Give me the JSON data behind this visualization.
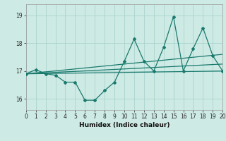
{
  "xlabel": "Humidex (Indice chaleur)",
  "xlim": [
    0,
    20
  ],
  "ylim": [
    15.6,
    19.4
  ],
  "yticks": [
    16,
    17,
    18,
    19
  ],
  "xticks": [
    0,
    1,
    2,
    3,
    4,
    5,
    6,
    7,
    8,
    9,
    10,
    11,
    12,
    13,
    14,
    15,
    16,
    17,
    18,
    19,
    20
  ],
  "bg_color": "#ceeae4",
  "grid_color": "#aad4ce",
  "line_color": "#1a7a6e",
  "series": {
    "main": {
      "x": [
        0,
        1,
        2,
        3,
        4,
        5,
        6,
        7,
        8,
        9,
        10,
        11,
        12,
        13,
        14,
        15,
        16,
        17,
        18,
        19,
        20
      ],
      "y": [
        16.9,
        17.05,
        16.9,
        16.85,
        16.6,
        16.6,
        15.95,
        15.95,
        16.3,
        16.6,
        17.35,
        18.15,
        17.35,
        17.0,
        17.85,
        18.95,
        17.0,
        17.8,
        18.55,
        17.55,
        17.0
      ]
    },
    "trend1": {
      "x": [
        0,
        20
      ],
      "y": [
        16.9,
        17.0
      ]
    },
    "trend2": {
      "x": [
        0,
        20
      ],
      "y": [
        16.9,
        17.6
      ]
    },
    "trend3": {
      "x": [
        0,
        20
      ],
      "y": [
        16.9,
        17.25
      ]
    }
  }
}
